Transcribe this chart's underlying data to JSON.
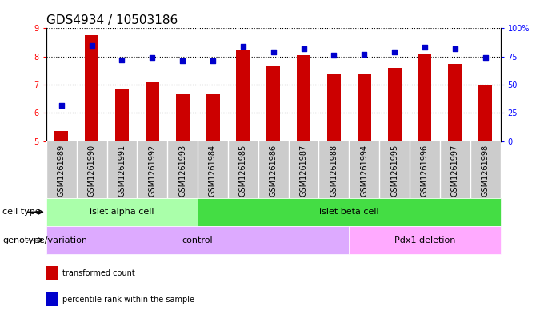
{
  "title": "GDS4934 / 10503186",
  "samples": [
    "GSM1261989",
    "GSM1261990",
    "GSM1261991",
    "GSM1261992",
    "GSM1261993",
    "GSM1261984",
    "GSM1261985",
    "GSM1261986",
    "GSM1261987",
    "GSM1261988",
    "GSM1261994",
    "GSM1261995",
    "GSM1261996",
    "GSM1261997",
    "GSM1261998"
  ],
  "transformed_count": [
    5.35,
    8.75,
    6.85,
    7.1,
    6.65,
    6.65,
    8.25,
    7.65,
    8.05,
    7.4,
    7.4,
    7.6,
    8.1,
    7.75,
    7.0
  ],
  "percentile_rank": [
    32,
    85,
    72,
    74,
    71,
    71,
    84,
    79,
    82,
    76,
    77,
    79,
    83,
    82,
    74
  ],
  "bar_color": "#cc0000",
  "dot_color": "#0000cc",
  "ylim_left": [
    5,
    9
  ],
  "ylim_right": [
    0,
    100
  ],
  "yticks_left": [
    5,
    6,
    7,
    8,
    9
  ],
  "yticks_right": [
    0,
    25,
    50,
    75,
    100
  ],
  "yticklabels_right": [
    "0",
    "25",
    "50",
    "75",
    "100%"
  ],
  "cell_type_groups": [
    {
      "label": "islet alpha cell",
      "start": 0,
      "end": 5,
      "color": "#aaffaa"
    },
    {
      "label": "islet beta cell",
      "start": 5,
      "end": 15,
      "color": "#44dd44"
    }
  ],
  "genotype_groups": [
    {
      "label": "control",
      "start": 0,
      "end": 10,
      "color": "#ddaaff"
    },
    {
      "label": "Pdx1 deletion",
      "start": 10,
      "end": 15,
      "color": "#ffaaff"
    }
  ],
  "cell_type_label": "cell type",
  "genotype_label": "genotype/variation",
  "legend_items": [
    {
      "label": "transformed count",
      "color": "#cc0000"
    },
    {
      "label": "percentile rank within the sample",
      "color": "#0000cc"
    }
  ],
  "bar_width": 0.45,
  "tick_fontsize": 7,
  "title_fontsize": 11,
  "xtick_bg": "#cccccc",
  "band_fontsize": 8
}
